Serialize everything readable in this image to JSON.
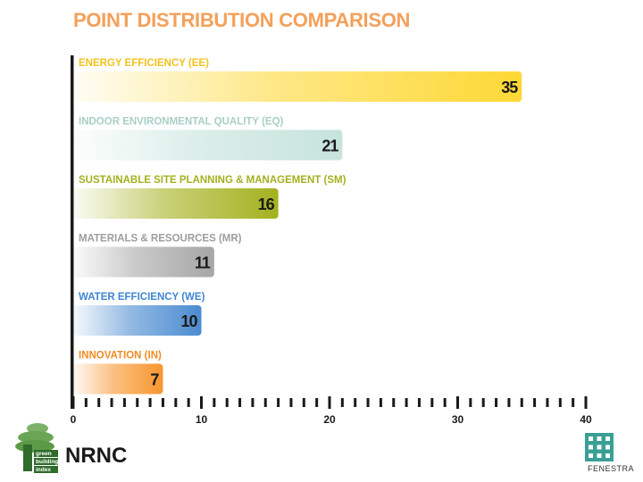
{
  "chart_data": {
    "type": "bar",
    "orientation": "horizontal",
    "title": "POINT DISTRIBUTION COMPARISON",
    "categories": [
      "ENERGY EFFICIENCY (EE)",
      "INDOOR ENVIRONMENTAL QUALITY (EQ)",
      "SUSTAINABLE SITE PLANNING & MANAGEMENT (SM)",
      "MATERIALS & RESOURCES (MR)",
      "WATER EFFICIENCY (WE)",
      "INNOVATION (IN)"
    ],
    "values": [
      35,
      21,
      16,
      11,
      10,
      7
    ],
    "data_labels": [
      "35",
      "21",
      "16",
      "11",
      "10",
      "7"
    ],
    "colors": [
      "#fdd835",
      "#c6e3dc",
      "#a4b11e",
      "#a6a6a6",
      "#4a8bd0",
      "#f7962e"
    ],
    "label_colors": [
      "#f2c21c",
      "#a9cfc6",
      "#a4b11e",
      "#9d9d9d",
      "#3f86d2",
      "#f08c24"
    ],
    "xlim": [
      0,
      40
    ],
    "xticks": [
      0,
      10,
      20,
      30,
      40
    ],
    "xtick_labels": [
      "0",
      "10",
      "20",
      "30",
      "40"
    ],
    "grid": false,
    "legend": "none"
  },
  "footer": {
    "nrnc_label": "NRNC",
    "gbi_logo_text": [
      "green",
      "building",
      "index"
    ],
    "fenestra_text": "FENESTRA"
  }
}
